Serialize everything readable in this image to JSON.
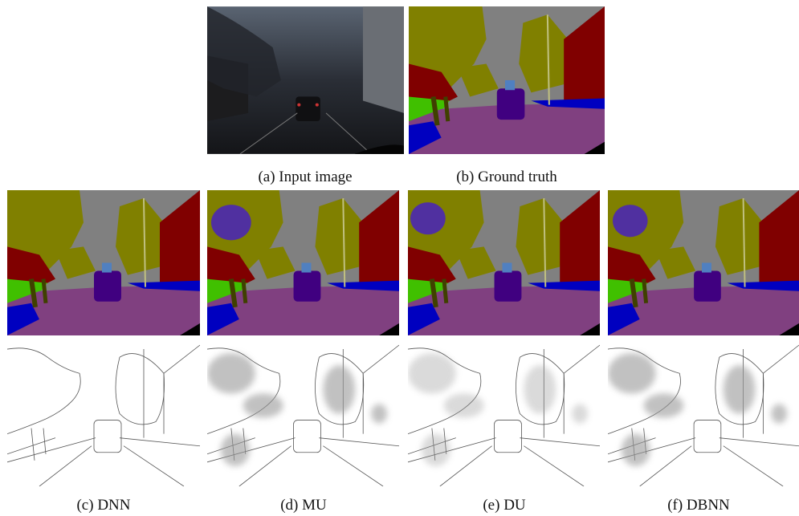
{
  "panels": [
    {
      "label": "(a) Input image"
    },
    {
      "label": "(b) Ground truth"
    },
    {
      "label": "(c) DNN"
    },
    {
      "label": "(d) MU"
    },
    {
      "label": "(e) DU"
    },
    {
      "label": "(f) DBNN"
    }
  ]
}
